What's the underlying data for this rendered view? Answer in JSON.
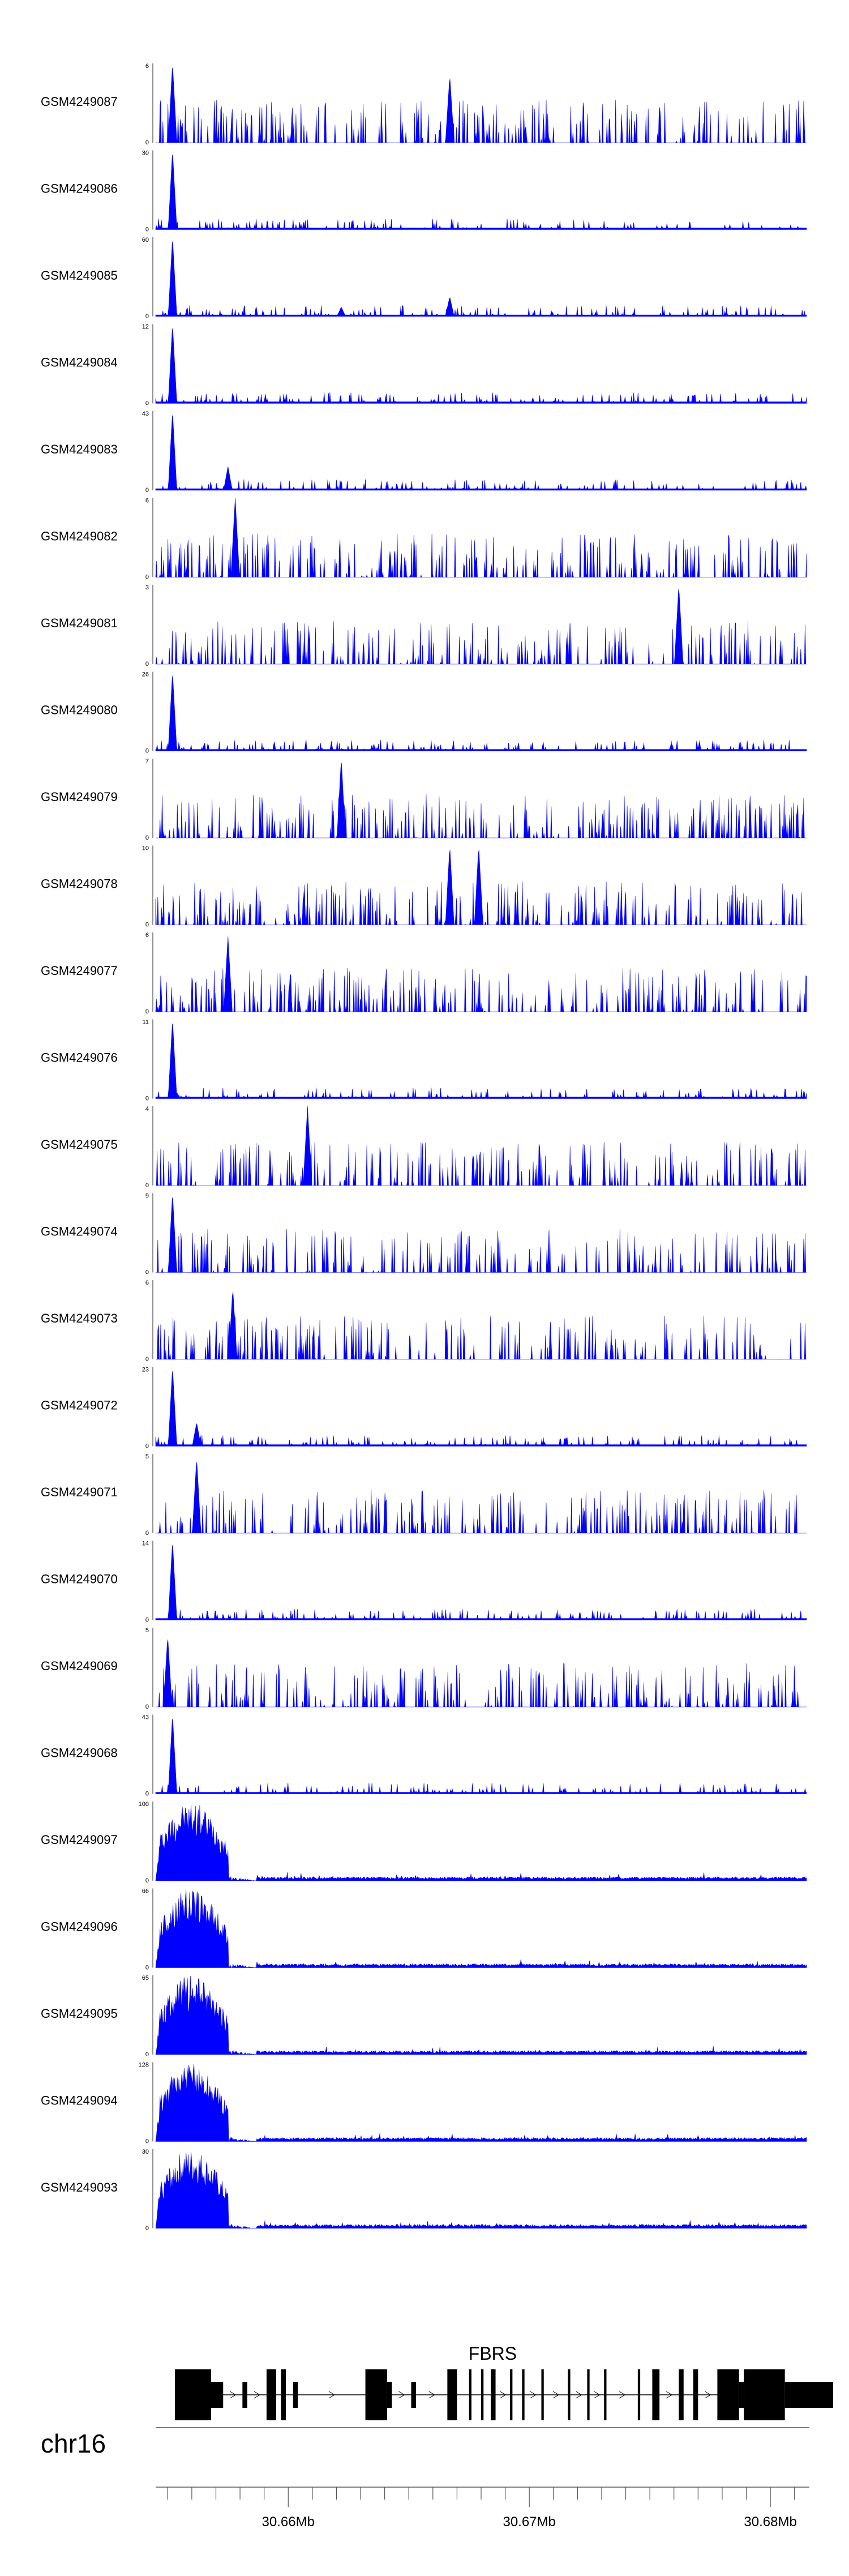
{
  "chart_data": {
    "type": "area",
    "chromosome": "chr16",
    "x_range": [
      30.6545,
      30.6815
    ],
    "x_unit": "Mb",
    "axis_ticks": [
      {
        "pos": 30.66,
        "label": "30.66Mb"
      },
      {
        "pos": 30.67,
        "label": "30.67Mb"
      },
      {
        "pos": 30.68,
        "label": "30.68Mb"
      }
    ],
    "fill_color": "#0000ff",
    "gene": {
      "name": "FBRS",
      "exons": [
        {
          "start": 30.6553,
          "end": 30.6568,
          "thick": true
        },
        {
          "start": 30.6568,
          "end": 30.6573,
          "thick": false
        },
        {
          "start": 30.6581,
          "end": 30.6583,
          "thick": false
        },
        {
          "start": 30.6591,
          "end": 30.6595,
          "thick": true
        },
        {
          "start": 30.6597,
          "end": 30.6599,
          "thick": true
        },
        {
          "start": 30.6602,
          "end": 30.6604,
          "thick": false
        },
        {
          "start": 30.6632,
          "end": 30.6641,
          "thick": true
        },
        {
          "start": 30.6641,
          "end": 30.6643,
          "thick": false
        },
        {
          "start": 30.6651,
          "end": 30.6653,
          "thick": false
        },
        {
          "start": 30.6666,
          "end": 30.667,
          "thick": true
        },
        {
          "start": 30.6675,
          "end": 30.6676,
          "thick": true
        },
        {
          "start": 30.668,
          "end": 30.6681,
          "thick": true
        },
        {
          "start": 30.6684,
          "end": 30.6686,
          "thick": true
        },
        {
          "start": 30.6692,
          "end": 30.6693,
          "thick": true
        },
        {
          "start": 30.6697,
          "end": 30.6698,
          "thick": true
        },
        {
          "start": 30.6705,
          "end": 30.6706,
          "thick": true
        },
        {
          "start": 30.6716,
          "end": 30.6717,
          "thick": true
        },
        {
          "start": 30.6724,
          "end": 30.6725,
          "thick": true
        },
        {
          "start": 30.6731,
          "end": 30.6732,
          "thick": true
        },
        {
          "start": 30.6745,
          "end": 30.6746,
          "thick": true
        },
        {
          "start": 30.6751,
          "end": 30.6754,
          "thick": true
        },
        {
          "start": 30.6762,
          "end": 30.6764,
          "thick": true
        },
        {
          "start": 30.6768,
          "end": 30.677,
          "thick": true
        },
        {
          "start": 30.6778,
          "end": 30.6787,
          "thick": true
        },
        {
          "start": 30.6787,
          "end": 30.6789,
          "thick": false
        },
        {
          "start": 30.6789,
          "end": 30.6806,
          "thick": true
        },
        {
          "start": 30.6806,
          "end": 30.6826,
          "thick": false
        }
      ]
    },
    "tracks": [
      {
        "name": "GSM4249087",
        "ymax": 6,
        "profile": "sparse",
        "peaks": [
          {
            "x": 30.6552,
            "h": 1.0
          },
          {
            "x": 30.6667,
            "h": 0.85
          }
        ],
        "seed": 87
      },
      {
        "name": "GSM4249086",
        "ymax": 30,
        "profile": "dense",
        "peaks": [
          {
            "x": 30.6552,
            "h": 1.0
          }
        ],
        "seed": 86
      },
      {
        "name": "GSM4249085",
        "ymax": 60,
        "profile": "dense",
        "peaks": [
          {
            "x": 30.6552,
            "h": 1.0
          },
          {
            "x": 30.6667,
            "h": 0.25
          },
          {
            "x": 30.6622,
            "h": 0.12
          }
        ],
        "seed": 85
      },
      {
        "name": "GSM4249084",
        "ymax": 12,
        "profile": "dense",
        "peaks": [
          {
            "x": 30.6552,
            "h": 1.0
          }
        ],
        "seed": 84
      },
      {
        "name": "GSM4249083",
        "ymax": 43,
        "profile": "dense",
        "peaks": [
          {
            "x": 30.6552,
            "h": 1.0
          },
          {
            "x": 30.6575,
            "h": 0.3
          }
        ],
        "seed": 83
      },
      {
        "name": "GSM4249082",
        "ymax": 6,
        "profile": "sparse",
        "peaks": [
          {
            "x": 30.6578,
            "h": 1.0
          }
        ],
        "seed": 82
      },
      {
        "name": "GSM4249081",
        "ymax": 3,
        "profile": "sparse",
        "peaks": [
          {
            "x": 30.6762,
            "h": 1.0
          }
        ],
        "seed": 81
      },
      {
        "name": "GSM4249080",
        "ymax": 26,
        "profile": "dense",
        "peaks": [
          {
            "x": 30.6552,
            "h": 1.0
          }
        ],
        "seed": 80
      },
      {
        "name": "GSM4249079",
        "ymax": 7,
        "profile": "sparse",
        "peaks": [
          {
            "x": 30.6622,
            "h": 1.0
          }
        ],
        "seed": 79
      },
      {
        "name": "GSM4249078",
        "ymax": 10,
        "profile": "sparse",
        "peaks": [
          {
            "x": 30.6667,
            "h": 1.0
          },
          {
            "x": 30.6679,
            "h": 1.0
          }
        ],
        "seed": 78
      },
      {
        "name": "GSM4249077",
        "ymax": 6,
        "profile": "sparse",
        "peaks": [
          {
            "x": 30.6575,
            "h": 0.95
          }
        ],
        "seed": 77
      },
      {
        "name": "GSM4249076",
        "ymax": 11,
        "profile": "dense",
        "peaks": [
          {
            "x": 30.6552,
            "h": 1.0
          }
        ],
        "seed": 76
      },
      {
        "name": "GSM4249075",
        "ymax": 4,
        "profile": "sparse",
        "peaks": [
          {
            "x": 30.6608,
            "h": 1.0
          }
        ],
        "seed": 75
      },
      {
        "name": "GSM4249074",
        "ymax": 9,
        "profile": "sparse",
        "peaks": [
          {
            "x": 30.6552,
            "h": 1.0
          }
        ],
        "seed": 74
      },
      {
        "name": "GSM4249073",
        "ymax": 6,
        "profile": "sparse",
        "peaks": [
          {
            "x": 30.6577,
            "h": 0.9
          }
        ],
        "seed": 73
      },
      {
        "name": "GSM4249072",
        "ymax": 23,
        "profile": "dense",
        "peaks": [
          {
            "x": 30.6552,
            "h": 1.0
          },
          {
            "x": 30.6562,
            "h": 0.3
          }
        ],
        "seed": 72
      },
      {
        "name": "GSM4249071",
        "ymax": 5,
        "profile": "sparse",
        "peaks": [
          {
            "x": 30.6562,
            "h": 0.95
          }
        ],
        "seed": 71
      },
      {
        "name": "GSM4249070",
        "ymax": 14,
        "profile": "dense",
        "peaks": [
          {
            "x": 30.6552,
            "h": 1.0
          }
        ],
        "seed": 70
      },
      {
        "name": "GSM4249069",
        "ymax": 5,
        "profile": "sparse",
        "peaks": [
          {
            "x": 30.655,
            "h": 0.9
          }
        ],
        "seed": 69
      },
      {
        "name": "GSM4249068",
        "ymax": 43,
        "profile": "dense",
        "peaks": [
          {
            "x": 30.6552,
            "h": 1.0
          }
        ],
        "seed": 68
      },
      {
        "name": "GSM4249097",
        "ymax": 100,
        "profile": "block",
        "peaks": [],
        "seed": 97
      },
      {
        "name": "GSM4249096",
        "ymax": 66,
        "profile": "block",
        "peaks": [],
        "seed": 96
      },
      {
        "name": "GSM4249095",
        "ymax": 65,
        "profile": "block",
        "peaks": [],
        "seed": 95
      },
      {
        "name": "GSM4249094",
        "ymax": 128,
        "profile": "block",
        "peaks": [],
        "seed": 94
      },
      {
        "name": "GSM4249093",
        "ymax": 30,
        "profile": "block",
        "peaks": [],
        "seed": 93
      }
    ]
  }
}
